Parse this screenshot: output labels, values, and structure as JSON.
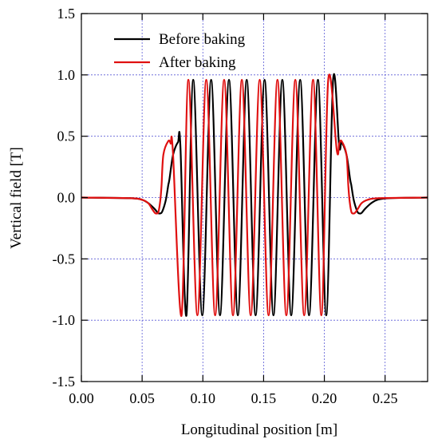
{
  "chart_data": {
    "type": "line",
    "xlabel": "Longitudinal position [m]",
    "ylabel": "Vertical field [T]",
    "xlim": [
      0.0,
      0.285
    ],
    "ylim": [
      -1.5,
      1.5
    ],
    "xticks": [
      "0.00",
      "0.05",
      "0.10",
      "0.15",
      "0.20",
      "0.25"
    ],
    "xtick_values": [
      0.0,
      0.05,
      0.1,
      0.15,
      0.2,
      0.25
    ],
    "yticks": [
      "1.5",
      "1.0",
      "0.5",
      "0.0",
      "-0.5",
      "-1.0",
      "-1.5"
    ],
    "ytick_values": [
      1.5,
      1.0,
      0.5,
      0.0,
      -0.5,
      -1.0,
      -1.5
    ],
    "grid": true,
    "legend_position": "top-left",
    "series": [
      {
        "name": "Before baking",
        "color": "#000000",
        "period_m": 0.01465,
        "peak_T": 0.96,
        "center_m": 0.14683,
        "x": [
          0.0,
          0.04,
          0.05,
          0.055,
          0.06,
          0.063,
          0.0645,
          0.0665,
          0.0695,
          0.0715,
          0.0725,
          0.0755,
          0.0795,
          0.0815,
          0.0865,
          0.0921,
          0.0995,
          0.1068,
          0.1141,
          0.1215,
          0.1288,
          0.1361,
          0.1434,
          0.1508,
          0.1581,
          0.1654,
          0.1727,
          0.1801,
          0.1874,
          0.1947,
          0.2015,
          0.2072,
          0.2122,
          0.2142,
          0.2182,
          0.2212,
          0.2222,
          0.2242,
          0.2272,
          0.2292,
          0.2307,
          0.2337,
          0.2387,
          0.2437,
          0.2537,
          0.285
        ],
        "y": [
          0.0,
          -0.005,
          -0.018,
          -0.045,
          -0.09,
          -0.125,
          -0.13,
          -0.115,
          -0.02,
          0.1,
          0.15,
          0.35,
          0.45,
          0.42,
          -0.96,
          0.96,
          -0.96,
          0.96,
          -0.96,
          0.96,
          -0.96,
          0.96,
          -0.96,
          0.96,
          -0.96,
          0.96,
          -0.96,
          0.96,
          -0.96,
          0.96,
          -0.96,
          0.96,
          0.42,
          0.45,
          0.35,
          0.15,
          0.1,
          -0.02,
          -0.115,
          -0.13,
          -0.125,
          -0.09,
          -0.045,
          -0.018,
          -0.005,
          0.0
        ]
      },
      {
        "name": "After baking",
        "color": "#e01010",
        "period_m": 0.01465,
        "peak_T": 0.96,
        "center_m": 0.14283,
        "x": [
          0.0,
          0.04,
          0.05,
          0.055,
          0.058,
          0.0605,
          0.062,
          0.0635,
          0.065,
          0.066,
          0.0675,
          0.0715,
          0.0735,
          0.0753,
          0.0825,
          0.0881,
          0.0955,
          0.1028,
          0.1101,
          0.1175,
          0.1248,
          0.1321,
          0.1394,
          0.1468,
          0.1541,
          0.1614,
          0.1687,
          0.1761,
          0.1834,
          0.1907,
          0.1975,
          0.2032,
          0.2103,
          0.2122,
          0.2142,
          0.2182,
          0.2197,
          0.2207,
          0.2222,
          0.2237,
          0.2252,
          0.2277,
          0.2307,
          0.2357,
          0.2457,
          0.285
        ],
        "y": [
          0.0,
          -0.005,
          -0.018,
          -0.045,
          -0.09,
          -0.125,
          -0.13,
          -0.115,
          -0.02,
          0.1,
          0.35,
          0.46,
          0.44,
          0.38,
          -0.96,
          0.96,
          -0.96,
          0.96,
          -0.96,
          0.96,
          -0.96,
          0.96,
          -0.96,
          0.96,
          -0.96,
          0.96,
          -0.96,
          0.96,
          -0.96,
          0.96,
          -0.96,
          0.96,
          0.38,
          0.44,
          0.46,
          0.35,
          0.1,
          -0.02,
          -0.115,
          -0.13,
          -0.125,
          -0.09,
          -0.045,
          -0.018,
          -0.005,
          0.0
        ]
      }
    ]
  }
}
